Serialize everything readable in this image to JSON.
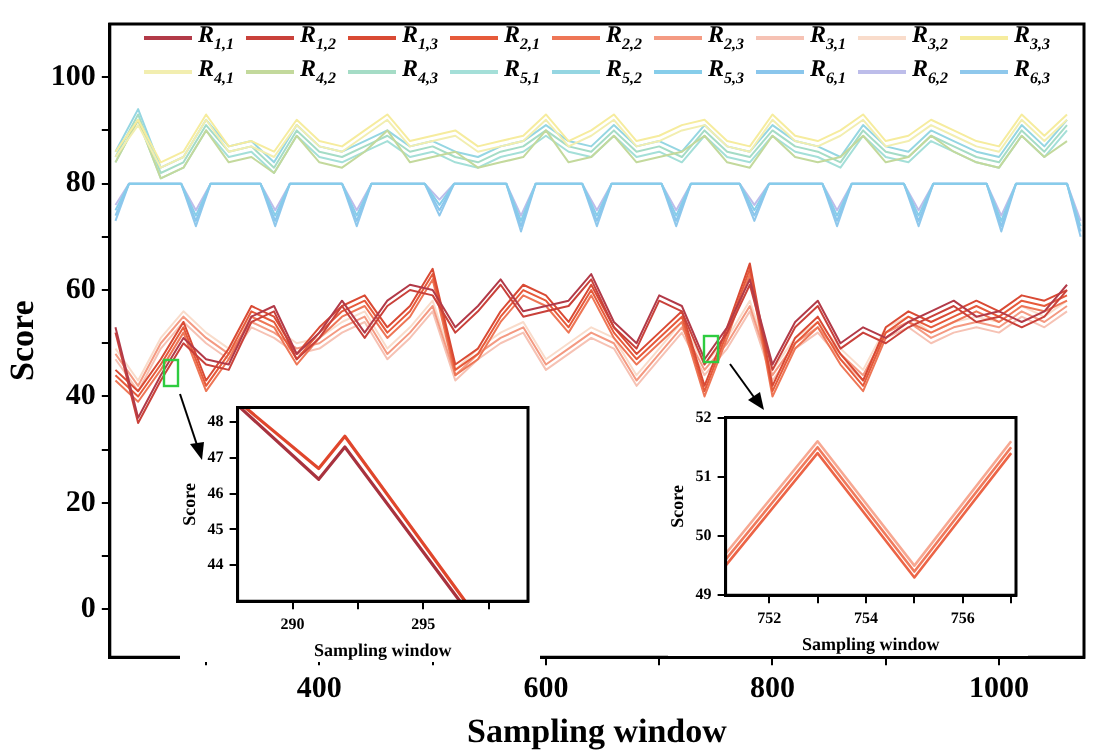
{
  "chart_data": [
    {
      "type": "line",
      "xlabel": "Sampling window",
      "ylabel": "Score",
      "legend": "top",
      "xlim": [
        215,
        1075
      ],
      "ylim": [
        -9,
        110
      ],
      "xticks": [
        {
          "value": 300,
          "label": null
        },
        400,
        {
          "value": 500,
          "label": null
        },
        600,
        {
          "value": 700,
          "label": null
        },
        800,
        {
          "value": 900,
          "label": null
        },
        1000
      ],
      "yticks": [
        0,
        {
          "value": 10,
          "label": null
        },
        20,
        {
          "value": 30,
          "label": null
        },
        40,
        {
          "value": 50,
          "label": null
        },
        60,
        {
          "value": 70,
          "label": null
        },
        80,
        {
          "value": 90,
          "label": null
        },
        100
      ],
      "x": [
        220,
        240,
        260,
        280,
        300,
        320,
        340,
        360,
        380,
        400,
        420,
        440,
        460,
        480,
        500,
        520,
        540,
        560,
        580,
        600,
        620,
        640,
        660,
        680,
        700,
        720,
        740,
        760,
        780,
        800,
        820,
        840,
        860,
        880,
        900,
        920,
        940,
        960,
        980,
        1000,
        1020,
        1040,
        1060
      ],
      "series": [
        {
          "name": "R$_{1,1}$",
          "color": "#b23a48",
          "values": [
            53,
            36,
            44,
            51,
            47,
            46,
            55,
            57,
            48,
            52,
            58,
            52,
            58,
            61,
            60,
            53,
            57,
            62,
            56,
            57,
            58,
            63,
            54,
            50,
            59,
            57,
            47,
            53,
            62,
            46,
            54,
            58,
            50,
            53,
            51,
            54,
            56,
            58,
            55,
            56,
            54,
            56,
            61
          ]
        },
        {
          "name": "R$_{1,2}$",
          "color": "#c9413a",
          "values": [
            52,
            35,
            43,
            50,
            46,
            45,
            54,
            56,
            47,
            51,
            57,
            51,
            57,
            60,
            59,
            52,
            56,
            61,
            55,
            56,
            57,
            62,
            53,
            49,
            58,
            56,
            46,
            52,
            61,
            45,
            53,
            57,
            49,
            52,
            50,
            53,
            55,
            57,
            54,
            55,
            53,
            55,
            60
          ]
        },
        {
          "name": "R$_{1,3}$",
          "color": "#d94a34",
          "values": [
            45,
            41,
            47,
            54,
            43,
            49,
            57,
            55,
            48,
            53,
            57,
            59,
            53,
            57,
            64,
            46,
            49,
            56,
            61,
            59,
            54,
            61,
            53,
            48,
            52,
            56,
            42,
            53,
            65,
            42,
            51,
            55,
            48,
            43,
            53,
            56,
            54,
            56,
            58,
            56,
            59,
            58,
            60
          ]
        },
        {
          "name": "R$_{2,1}$",
          "color": "#e65a3a",
          "values": [
            44,
            40,
            46,
            53,
            42,
            48,
            56,
            54,
            47,
            52,
            56,
            58,
            52,
            56,
            63,
            45,
            48,
            55,
            60,
            58,
            53,
            60,
            52,
            47,
            51,
            55,
            41,
            52,
            64,
            41,
            50,
            54,
            47,
            42,
            52,
            55,
            53,
            55,
            57,
            55,
            58,
            57,
            59
          ]
        },
        {
          "name": "R$_{2,2}$",
          "color": "#ee7656",
          "values": [
            43,
            39,
            45,
            52,
            41,
            47,
            55,
            53,
            46,
            51,
            55,
            57,
            51,
            55,
            62,
            44,
            47,
            54,
            59,
            57,
            52,
            59,
            51,
            46,
            50,
            54,
            40,
            51,
            63,
            40,
            49,
            53,
            46,
            41,
            51,
            54,
            52,
            54,
            56,
            54,
            57,
            56,
            58
          ]
        },
        {
          "name": "R$_{2,3}$",
          "color": "#f49a82",
          "values": [
            48,
            42,
            50,
            55,
            51,
            48,
            54,
            52,
            49,
            50,
            53,
            55,
            48,
            52,
            57,
            44,
            48,
            51,
            53,
            46,
            49,
            52,
            50,
            43,
            48,
            53,
            45,
            50,
            57,
            44,
            50,
            53,
            48,
            44,
            52,
            54,
            51,
            53,
            54,
            53,
            56,
            54,
            57
          ]
        },
        {
          "name": "R$_{3,1}$",
          "color": "#f6c2b4",
          "values": [
            47,
            41,
            49,
            54,
            50,
            47,
            53,
            51,
            48,
            49,
            52,
            54,
            47,
            51,
            56,
            43,
            47,
            50,
            52,
            45,
            48,
            51,
            49,
            42,
            47,
            52,
            44,
            49,
            56,
            43,
            49,
            52,
            47,
            43,
            51,
            53,
            50,
            52,
            53,
            52,
            55,
            53,
            56
          ]
        },
        {
          "name": "R$_{3,2}$",
          "color": "#f9dccb",
          "values": [
            49,
            43,
            51,
            56,
            52,
            49,
            55,
            53,
            50,
            51,
            54,
            56,
            49,
            53,
            58,
            45,
            49,
            52,
            54,
            47,
            50,
            53,
            51,
            44,
            49,
            54,
            46,
            51,
            58,
            45,
            51,
            54,
            49,
            45,
            53,
            55,
            52,
            54,
            55,
            54,
            57,
            55,
            58
          ]
        },
        {
          "name": "R$_{3,3}$",
          "color": "#f6ec9e",
          "values": [
            86,
            92,
            84,
            86,
            93,
            87,
            88,
            86,
            92,
            88,
            87,
            90,
            93,
            88,
            89,
            90,
            87,
            88,
            89,
            93,
            88,
            90,
            93,
            88,
            89,
            91,
            92,
            88,
            87,
            93,
            89,
            88,
            90,
            93,
            88,
            89,
            92,
            90,
            88,
            87,
            93,
            89,
            93
          ]
        },
        {
          "name": "R$_{4,1}$",
          "color": "#f2eeb0",
          "values": [
            85,
            91,
            83,
            85,
            92,
            86,
            87,
            85,
            91,
            87,
            86,
            89,
            92,
            87,
            88,
            89,
            86,
            87,
            88,
            92,
            87,
            89,
            92,
            87,
            88,
            90,
            91,
            87,
            86,
            92,
            88,
            87,
            89,
            92,
            87,
            88,
            91,
            89,
            87,
            86,
            92,
            88,
            92
          ]
        },
        {
          "name": "R$_{4,2}$",
          "color": "#c3d99c",
          "values": [
            84,
            92,
            81,
            83,
            90,
            84,
            85,
            82,
            89,
            84,
            83,
            86,
            90,
            84,
            85,
            86,
            83,
            84,
            85,
            90,
            84,
            85,
            89,
            84,
            85,
            86,
            89,
            84,
            83,
            89,
            85,
            84,
            85,
            89,
            84,
            85,
            89,
            86,
            84,
            83,
            89,
            85,
            88
          ]
        },
        {
          "name": "R$_{4,3}$",
          "color": "#a5dcc6",
          "values": [
            85,
            93,
            82,
            84,
            91,
            86,
            87,
            83,
            90,
            86,
            85,
            87,
            89,
            86,
            87,
            85,
            84,
            86,
            87,
            90,
            87,
            86,
            90,
            86,
            87,
            85,
            90,
            86,
            85,
            90,
            87,
            86,
            84,
            90,
            86,
            85,
            89,
            87,
            85,
            84,
            90,
            86,
            91
          ]
        },
        {
          "name": "R$_{5,1}$",
          "color": "#a4dfd8",
          "values": [
            84,
            92,
            81,
            83,
            90,
            85,
            86,
            82,
            89,
            85,
            84,
            86,
            88,
            85,
            86,
            84,
            83,
            85,
            86,
            89,
            86,
            85,
            89,
            85,
            86,
            84,
            89,
            85,
            84,
            89,
            86,
            85,
            83,
            89,
            85,
            84,
            88,
            86,
            84,
            83,
            89,
            85,
            90
          ]
        },
        {
          "name": "R$_{5,2}$",
          "color": "#95d6e2",
          "values": [
            86,
            94,
            83,
            85,
            92,
            87,
            88,
            84,
            91,
            87,
            86,
            88,
            90,
            87,
            88,
            86,
            85,
            87,
            88,
            91,
            88,
            87,
            91,
            87,
            88,
            86,
            91,
            87,
            86,
            91,
            88,
            87,
            85,
            91,
            87,
            86,
            90,
            88,
            86,
            85,
            91,
            87,
            92
          ]
        },
        {
          "name": "R$_{5,3}$",
          "color": "#86cdea",
          "x": [
            220,
            232,
            278,
            291,
            304,
            348,
            361,
            374,
            420,
            433,
            446,
            493,
            506,
            519,
            565,
            578,
            591,
            632,
            645,
            658,
            702,
            715,
            728,
            771,
            784,
            797,
            844,
            857,
            870,
            916,
            929,
            942,
            989,
            1002,
            1015,
            1060,
            1072
          ],
          "values": [
            75,
            80,
            80,
            74,
            80,
            80,
            74,
            80,
            80,
            74,
            80,
            80,
            76,
            80,
            80,
            73,
            80,
            80,
            74,
            80,
            80,
            74,
            80,
            80,
            75,
            80,
            80,
            74,
            80,
            80,
            74,
            80,
            80,
            73,
            80,
            80,
            72
          ]
        },
        {
          "name": "R$_{6,1}$",
          "color": "#8ac6ec",
          "x": [
            220,
            232,
            278,
            291,
            304,
            348,
            361,
            374,
            420,
            433,
            446,
            493,
            506,
            519,
            565,
            578,
            591,
            632,
            645,
            658,
            702,
            715,
            728,
            771,
            784,
            797,
            844,
            857,
            870,
            916,
            929,
            942,
            989,
            1002,
            1015,
            1060,
            1072
          ],
          "values": [
            74,
            80,
            80,
            73,
            80,
            80,
            73,
            80,
            80,
            73,
            80,
            80,
            75,
            80,
            80,
            72,
            80,
            80,
            73,
            80,
            80,
            73,
            80,
            80,
            74,
            80,
            80,
            73,
            80,
            80,
            73,
            80,
            80,
            72,
            80,
            80,
            71
          ]
        },
        {
          "name": "R$_{6,2}$",
          "color": "#bdbdea",
          "x": [
            220,
            232,
            278,
            291,
            304,
            348,
            361,
            374,
            420,
            433,
            446,
            493,
            506,
            519,
            565,
            578,
            591,
            632,
            645,
            658,
            702,
            715,
            728,
            771,
            784,
            797,
            844,
            857,
            870,
            916,
            929,
            942,
            989,
            1002,
            1015,
            1060,
            1072
          ],
          "values": [
            76,
            80,
            80,
            75,
            80,
            80,
            75,
            80,
            80,
            75,
            80,
            80,
            77,
            80,
            80,
            74,
            80,
            80,
            75,
            80,
            80,
            75,
            80,
            80,
            76,
            80,
            80,
            75,
            80,
            80,
            75,
            80,
            80,
            74,
            80,
            80,
            73
          ]
        },
        {
          "name": "R$_{6,3}$",
          "color": "#8fc8ec",
          "x": [
            220,
            232,
            278,
            291,
            304,
            348,
            361,
            374,
            420,
            433,
            446,
            493,
            506,
            519,
            565,
            578,
            591,
            632,
            645,
            658,
            702,
            715,
            728,
            771,
            784,
            797,
            844,
            857,
            870,
            916,
            929,
            942,
            989,
            1002,
            1015,
            1060,
            1072
          ],
          "values": [
            73,
            80,
            80,
            72,
            80,
            80,
            72,
            80,
            80,
            72,
            80,
            80,
            74,
            80,
            80,
            71,
            80,
            80,
            72,
            80,
            80,
            72,
            80,
            80,
            73,
            80,
            80,
            72,
            80,
            80,
            72,
            80,
            80,
            71,
            80,
            80,
            70
          ]
        }
      ]
    },
    {
      "type": "line",
      "xlabel": "Sampling window",
      "ylabel": "Score",
      "xlim": [
        287.9,
        299
      ],
      "ylim": [
        43,
        48.4
      ],
      "xticks": [
        290,
        {
          "value": 292.5,
          "label": null
        },
        295,
        {
          "value": 297.5,
          "label": null
        }
      ],
      "yticks": [
        44,
        45,
        46,
        47,
        48
      ],
      "series": [
        {
          "color": "#e0462c",
          "x": [
            288.2,
            291,
            292,
            296.6
          ],
          "values": [
            48.4,
            46.7,
            47.6,
            43
          ]
        },
        {
          "color": "#a8323e",
          "x": [
            288,
            291,
            292,
            296.4
          ],
          "values": [
            48.4,
            46.4,
            47.3,
            43
          ]
        }
      ]
    },
    {
      "type": "line",
      "xlabel": "Sampling window",
      "ylabel": "Score",
      "xlim": [
        751.1,
        757.1
      ],
      "ylim": [
        49,
        52
      ],
      "xticks": [
        752,
        {
          "value": 753,
          "label": null
        },
        754,
        {
          "value": 755,
          "label": null
        },
        756,
        {
          "value": 757,
          "label": null
        }
      ],
      "yticks": [
        49,
        50,
        51,
        52
      ],
      "x": [
        751.1,
        753,
        755,
        757
      ],
      "series": [
        {
          "color": "#f7a892",
          "values": [
            49.7,
            51.6,
            49.5,
            51.6
          ]
        },
        {
          "color": "#f07a5c",
          "values": [
            49.6,
            51.5,
            49.4,
            51.5
          ]
        },
        {
          "color": "#ec6446",
          "values": [
            49.5,
            51.4,
            49.3,
            51.4
          ]
        }
      ]
    }
  ]
}
